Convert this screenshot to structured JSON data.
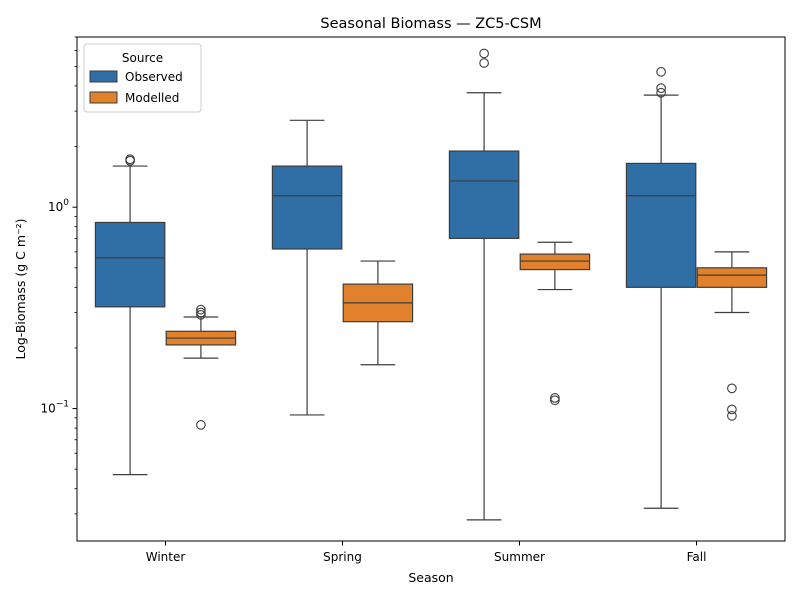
{
  "chart_data": {
    "type": "box",
    "title": "Seasonal Biomass — ZC5-CSM",
    "xlabel": "Season",
    "ylabel": "Log-Biomass (g C m⁻²)",
    "yscale": "log",
    "ylim": [
      0.022,
      7.0
    ],
    "y_ticks": [
      {
        "value": 0.1,
        "base": "10",
        "exp": "−1"
      },
      {
        "value": 1,
        "base": "10",
        "exp": "0"
      }
    ],
    "categories": [
      "Winter",
      "Spring",
      "Summer",
      "Fall"
    ],
    "legend": {
      "title": "Source",
      "position": "upper-left"
    },
    "grid": false,
    "series": [
      {
        "name": "Observed",
        "color": "#2f6fa6",
        "boxes": [
          {
            "whislo": 0.047,
            "q1": 0.32,
            "median": 0.56,
            "q3": 0.84,
            "whishi": 1.6,
            "fliers": [
              1.7,
              1.73
            ]
          },
          {
            "whislo": 0.093,
            "q1": 0.62,
            "median": 1.14,
            "q3": 1.6,
            "whishi": 2.7,
            "fliers": []
          },
          {
            "whislo": 0.028,
            "q1": 0.7,
            "median": 1.35,
            "q3": 1.9,
            "whishi": 3.7,
            "fliers": [
              5.2,
              5.8
            ]
          },
          {
            "whislo": 0.032,
            "q1": 0.4,
            "median": 1.14,
            "q3": 1.65,
            "whishi": 3.6,
            "fliers": [
              3.7,
              3.9,
              4.7
            ]
          }
        ]
      },
      {
        "name": "Modelled",
        "color": "#e1812c",
        "boxes": [
          {
            "whislo": 0.178,
            "q1": 0.207,
            "median": 0.224,
            "q3": 0.242,
            "whishi": 0.285,
            "fliers": [
              0.083,
              0.292,
              0.3,
              0.31
            ]
          },
          {
            "whislo": 0.165,
            "q1": 0.27,
            "median": 0.335,
            "q3": 0.415,
            "whishi": 0.54,
            "fliers": []
          },
          {
            "whislo": 0.39,
            "q1": 0.49,
            "median": 0.54,
            "q3": 0.585,
            "whishi": 0.67,
            "fliers": [
              0.11,
              0.113
            ]
          },
          {
            "whislo": 0.3,
            "q1": 0.4,
            "median": 0.46,
            "q3": 0.5,
            "whishi": 0.6,
            "fliers": [
              0.092,
              0.099,
              0.126
            ]
          }
        ]
      }
    ]
  }
}
